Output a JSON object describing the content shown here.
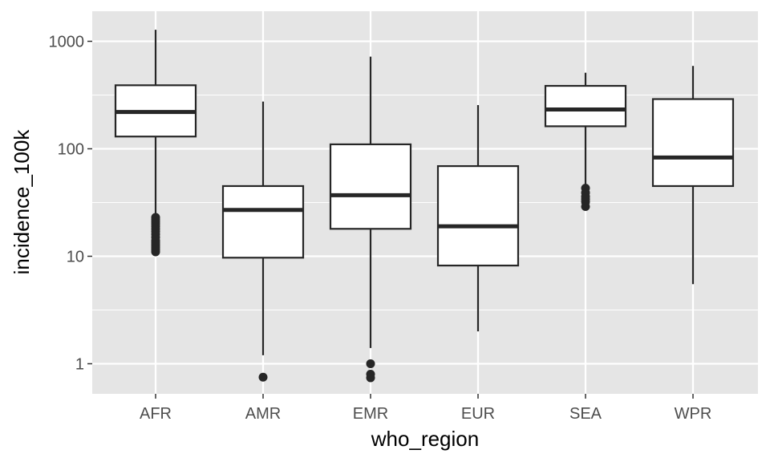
{
  "chart_data": {
    "type": "boxplot",
    "title": "",
    "xlabel": "who_region",
    "ylabel": "incidence_100k",
    "y_scale": "log10",
    "ylim": [
      0.52,
      1400
    ],
    "y_ticks": [
      1,
      10,
      100,
      1000
    ],
    "y_tick_labels": [
      "1",
      "10",
      "100",
      "1000"
    ],
    "grid": true,
    "colors": {
      "panel": "#e5e5e5",
      "grid": "#ffffff",
      "box_fill": "#ffffff",
      "box_stroke": "#262626",
      "tick_label": "#4d4d4d"
    },
    "categories": [
      "AFR",
      "AMR",
      "EMR",
      "EUR",
      "SEA",
      "WPR"
    ],
    "boxes": [
      {
        "category": "AFR",
        "whisker_low": 11,
        "q1": 130,
        "median": 220,
        "q3": 390,
        "whisker_high": 1280,
        "outliers": [
          11,
          11.5,
          12,
          12.5,
          13,
          13.5,
          14,
          15,
          16,
          17,
          18,
          19,
          20,
          21,
          22,
          23
        ]
      },
      {
        "category": "AMR",
        "whisker_low": 1.2,
        "q1": 9.7,
        "median": 27,
        "q3": 45,
        "whisker_high": 275,
        "outliers": [
          0.75
        ]
      },
      {
        "category": "EMR",
        "whisker_low": 1.4,
        "q1": 18,
        "median": 37,
        "q3": 110,
        "whisker_high": 720,
        "outliers": [
          1.0,
          0.8,
          0.74
        ]
      },
      {
        "category": "EUR",
        "whisker_low": 2.0,
        "q1": 8.2,
        "median": 19,
        "q3": 69,
        "whisker_high": 255,
        "outliers": []
      },
      {
        "category": "SEA",
        "whisker_low": 43,
        "q1": 162,
        "median": 232,
        "q3": 385,
        "whisker_high": 510,
        "outliers": [
          43,
          39,
          36,
          34,
          32,
          29
        ]
      },
      {
        "category": "WPR",
        "whisker_low": 5.5,
        "q1": 45,
        "median": 83,
        "q3": 290,
        "whisker_high": 590,
        "outliers": []
      }
    ]
  }
}
